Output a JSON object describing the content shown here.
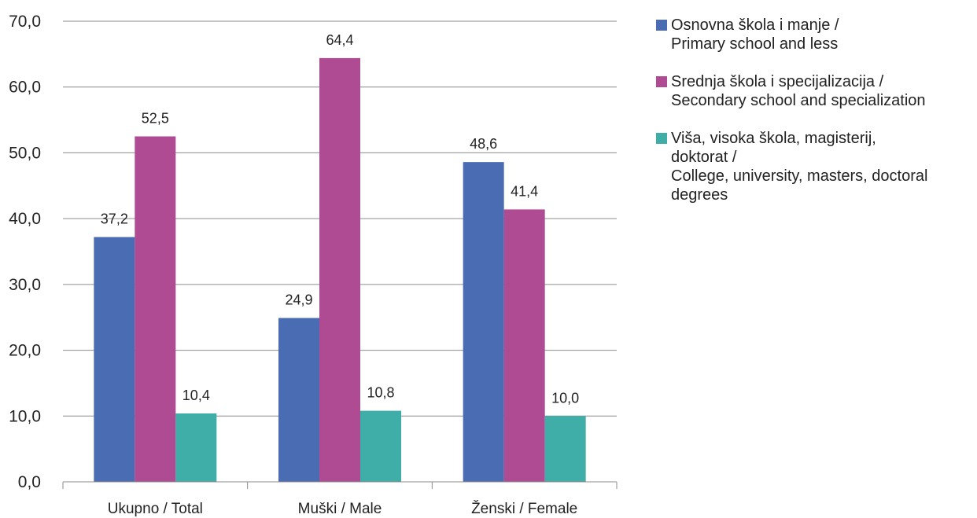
{
  "chart_data": {
    "type": "bar",
    "title": "",
    "xlabel": "",
    "ylabel": "",
    "ylim": [
      0,
      70
    ],
    "yticks": [
      "0,0",
      "10,0",
      "20,0",
      "30,0",
      "40,0",
      "50,0",
      "60,0",
      "70,0"
    ],
    "grid": true,
    "legend_position": "right",
    "categories": [
      "Ukupno / Total",
      "Muški / Male",
      "Ženski / Female"
    ],
    "series": [
      {
        "name": "Osnovna škola i manje /\nPrimary school and less",
        "color": "#4a6cb3",
        "values": [
          37.2,
          24.9,
          48.6
        ],
        "labels": [
          "37,2",
          "24,9",
          "48,6"
        ]
      },
      {
        "name": "Srednja škola i specijalizacija /\nSecondary school and specialization",
        "color": "#ae4b93",
        "values": [
          52.5,
          64.4,
          41.4
        ],
        "labels": [
          "52,5",
          "64,4",
          "41,4"
        ]
      },
      {
        "name": "Viša, visoka škola, magisterij,\ndoktorat /\nCollege, university, masters, doctoral\ndegrees",
        "color": "#40aea8",
        "values": [
          10.4,
          10.8,
          10.0
        ],
        "labels": [
          "10,4",
          "10,8",
          "10,0"
        ]
      }
    ]
  }
}
